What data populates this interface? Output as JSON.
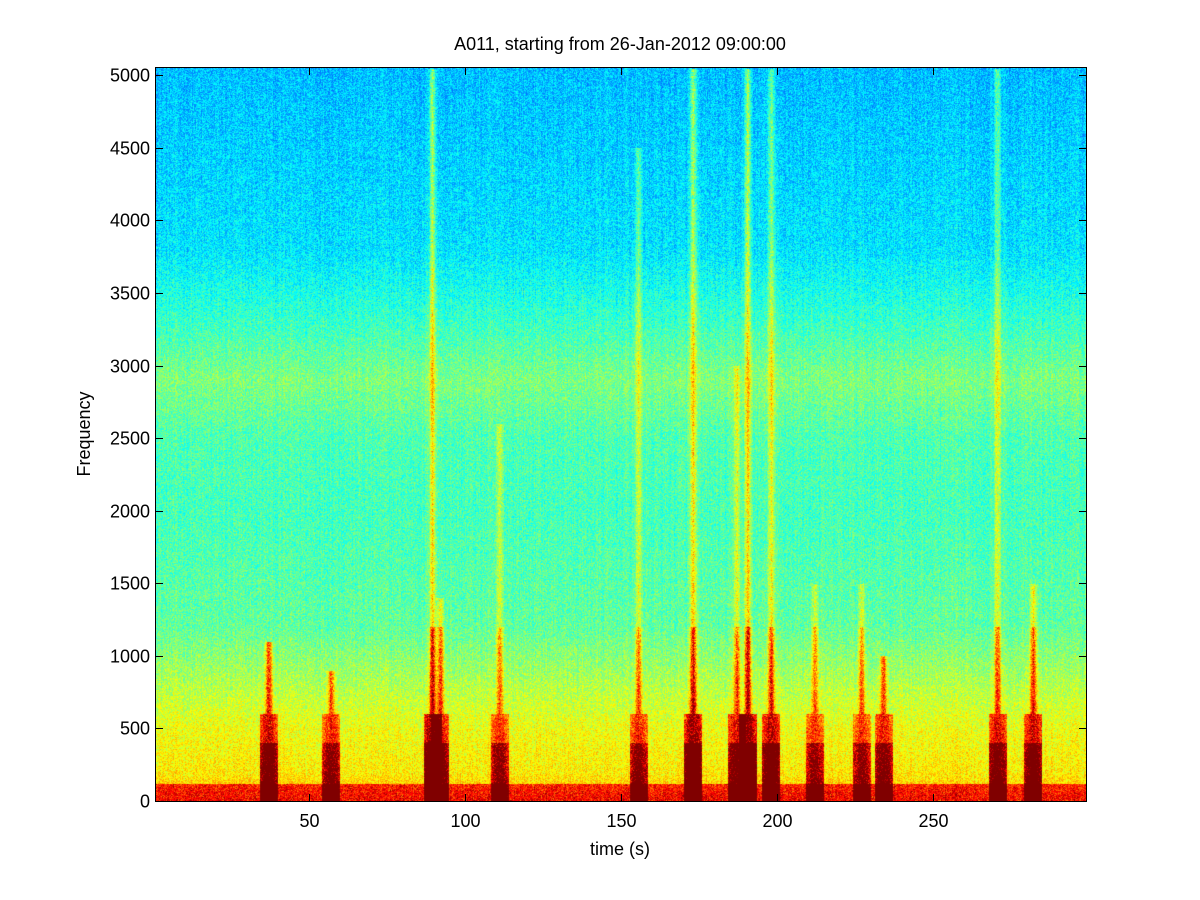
{
  "chart_data": {
    "type": "heatmap",
    "title": "A011, starting from 26-Jan-2012 09:00:00",
    "xlabel": "time (s)",
    "ylabel": "Frequency",
    "xlim": [
      1,
      299
    ],
    "ylim": [
      0,
      5050
    ],
    "xticks": [
      50,
      100,
      150,
      200,
      250
    ],
    "xtick_labels": [
      "50",
      "100",
      "150",
      "200",
      "250"
    ],
    "yticks": [
      0,
      500,
      1000,
      1500,
      2000,
      2500,
      3000,
      3500,
      4000,
      4500,
      5000
    ],
    "ytick_labels": [
      "0",
      "500",
      "1000",
      "1500",
      "2000",
      "2500",
      "3000",
      "3500",
      "4000",
      "4500",
      "5000"
    ],
    "colormap": "jet",
    "colors": {
      "high": "#cc1100",
      "mid_high": "#f0f000",
      "mid": "#40e6a0",
      "low": "#10d8e8"
    },
    "background_band": [
      {
        "freq": 0,
        "level": 0.7
      },
      {
        "freq": 200,
        "level": 0.64
      },
      {
        "freq": 500,
        "level": 0.61
      },
      {
        "freq": 800,
        "level": 0.55
      },
      {
        "freq": 1200,
        "level": 0.47
      },
      {
        "freq": 2000,
        "level": 0.44
      },
      {
        "freq": 2500,
        "level": 0.45
      },
      {
        "freq": 2900,
        "level": 0.5
      },
      {
        "freq": 3300,
        "level": 0.43
      },
      {
        "freq": 3800,
        "level": 0.35
      },
      {
        "freq": 5050,
        "level": 0.31
      }
    ],
    "events": [
      {
        "time": 37,
        "max_freq": 1100,
        "intensity": 0.75
      },
      {
        "time": 57,
        "max_freq": 900,
        "intensity": 0.6
      },
      {
        "time": 89.5,
        "max_freq": 5050,
        "intensity": 0.95
      },
      {
        "time": 92,
        "max_freq": 1400,
        "intensity": 0.7
      },
      {
        "time": 111,
        "max_freq": 2600,
        "intensity": 0.55
      },
      {
        "time": 155.5,
        "max_freq": 4500,
        "intensity": 0.6
      },
      {
        "time": 173,
        "max_freq": 5050,
        "intensity": 0.95
      },
      {
        "time": 187,
        "max_freq": 3000,
        "intensity": 0.7
      },
      {
        "time": 190.5,
        "max_freq": 5050,
        "intensity": 1.0
      },
      {
        "time": 198,
        "max_freq": 5050,
        "intensity": 0.8
      },
      {
        "time": 212,
        "max_freq": 1500,
        "intensity": 0.55
      },
      {
        "time": 227,
        "max_freq": 1500,
        "intensity": 0.55
      },
      {
        "time": 234,
        "max_freq": 1000,
        "intensity": 0.65
      },
      {
        "time": 270.5,
        "max_freq": 5050,
        "intensity": 0.7
      },
      {
        "time": 282,
        "max_freq": 1500,
        "intensity": 0.75
      }
    ]
  }
}
